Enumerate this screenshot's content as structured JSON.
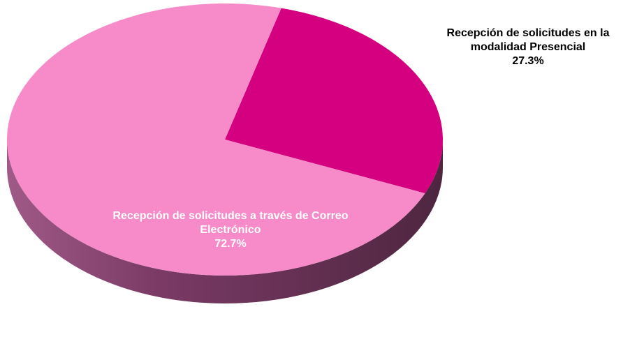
{
  "chart_data": {
    "type": "pie",
    "categories": [
      "Recepción de solicitudes en la modalidad Presencial",
      "Recepción de solicitudes a través de Correo Electrónico"
    ],
    "values": [
      27.3,
      72.7
    ],
    "value_labels": [
      "27.3%",
      "72.7%"
    ],
    "colors": [
      "#d4007f",
      "#f78ac9"
    ]
  }
}
